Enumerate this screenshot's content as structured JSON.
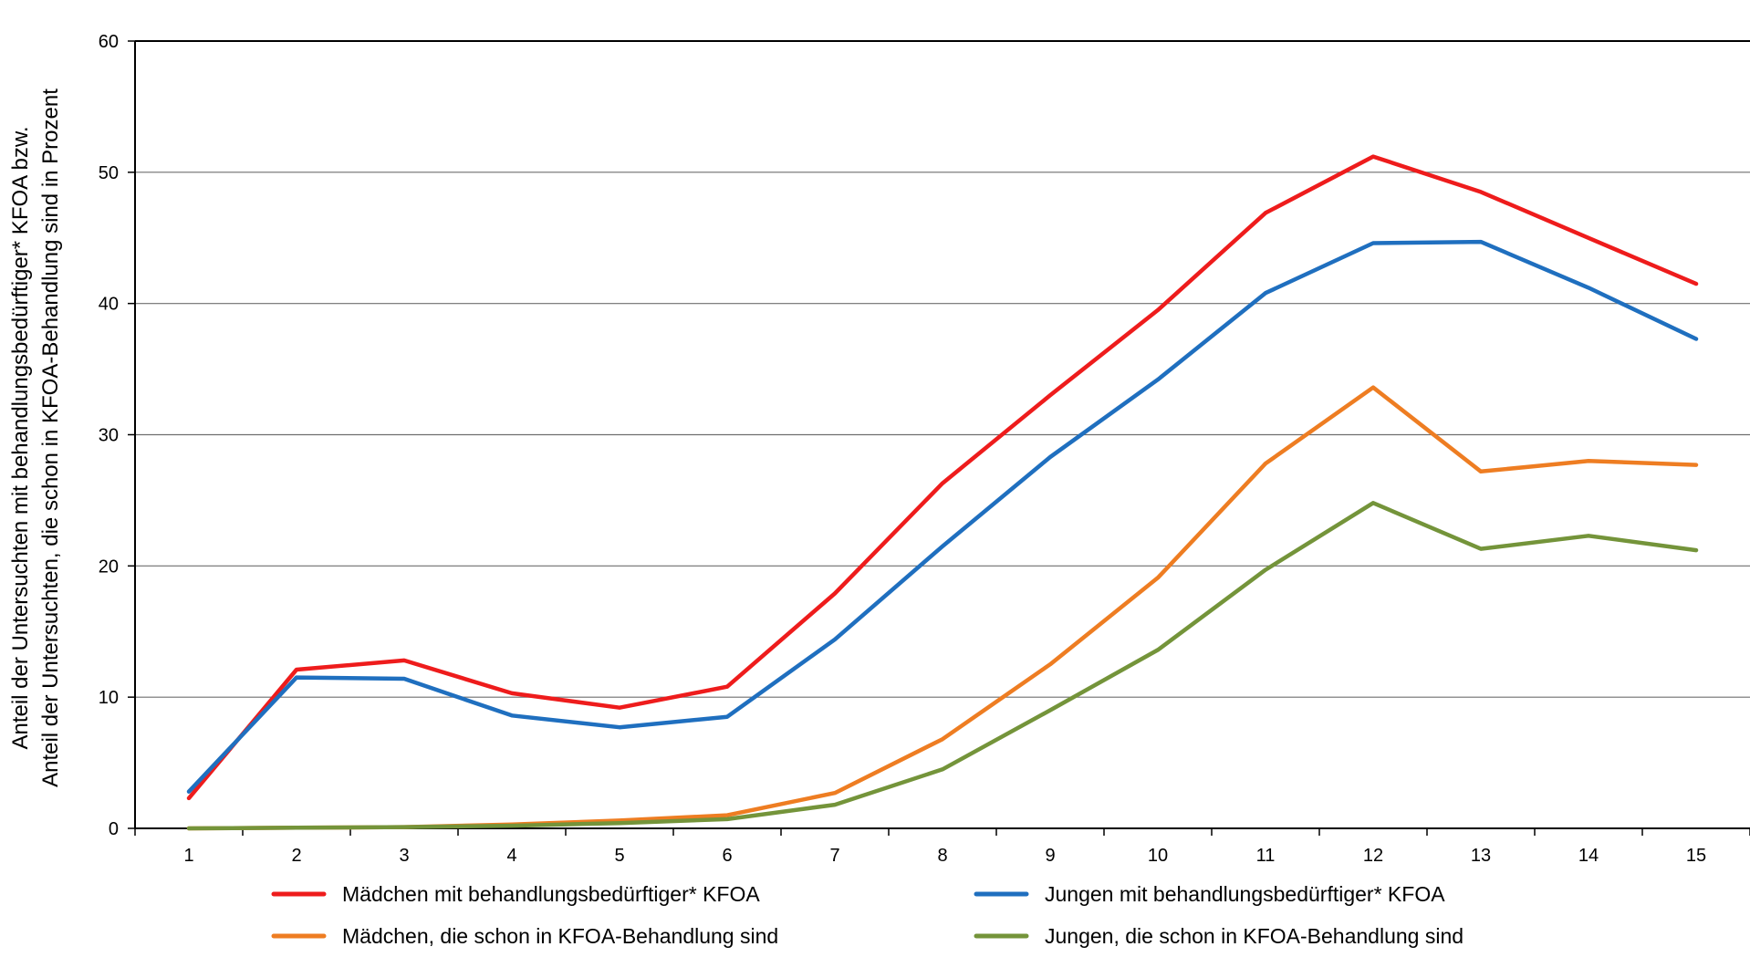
{
  "chart_data": {
    "type": "line",
    "title": "",
    "xlabel": "",
    "ylabel_lines": [
      "Anteil der Untersuchten mit behandlungsbedürftiger* KFOA bzw.",
      "Anteil der Untersuchten, die schon in KFOA-Behandlung sind in Prozent"
    ],
    "categories": [
      "1",
      "2",
      "3",
      "4",
      "5",
      "6",
      "7",
      "8",
      "9",
      "10",
      "11",
      "12",
      "13",
      "14",
      "15"
    ],
    "ylim": [
      0,
      60
    ],
    "yticks": [
      0,
      10,
      20,
      30,
      40,
      50,
      60
    ],
    "grid": true,
    "legend_position": "bottom",
    "series": [
      {
        "name": "Mädchen mit behandlungsbedürftiger* KFOA",
        "color": "#ee1c1c",
        "values": [
          2.3,
          12.1,
          12.8,
          10.3,
          9.2,
          10.8,
          17.9,
          26.3,
          33.0,
          39.5,
          46.9,
          51.2,
          48.5,
          45.0,
          41.5
        ]
      },
      {
        "name": "Jungen mit behandlungsbedürftiger* KFOA",
        "color": "#1f6fbf",
        "values": [
          2.8,
          11.5,
          11.4,
          8.6,
          7.7,
          8.5,
          14.4,
          21.5,
          28.3,
          34.2,
          40.8,
          44.6,
          44.7,
          41.2,
          37.3
        ]
      },
      {
        "name": "Mädchen, die schon in KFOA-Behandlung sind",
        "color": "#ee7d22",
        "values": [
          0.0,
          0.05,
          0.1,
          0.3,
          0.6,
          1.0,
          2.7,
          6.8,
          12.5,
          19.1,
          27.8,
          33.6,
          27.2,
          28.0,
          27.7
        ]
      },
      {
        "name": "Jungen, die schon in KFOA-Behandlung sind",
        "color": "#74943a",
        "values": [
          0.0,
          0.05,
          0.1,
          0.2,
          0.4,
          0.7,
          1.8,
          4.5,
          9.0,
          13.6,
          19.7,
          24.8,
          21.3,
          22.3,
          21.2
        ]
      }
    ]
  }
}
